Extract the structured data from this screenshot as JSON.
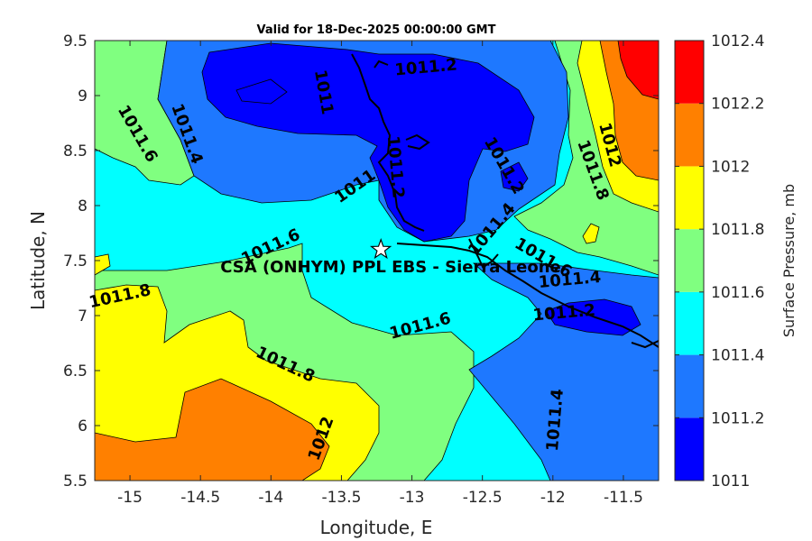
{
  "chart_data": {
    "type": "contour",
    "title": "Valid for 18-Dec-2025 00:00:00 GMT",
    "xlabel": "Longitude, E",
    "ylabel": "Latitude, N",
    "xlim": [
      -15.25,
      -11.25
    ],
    "ylim": [
      5.5,
      9.5
    ],
    "xticks": [
      -15,
      -14.5,
      -14,
      -13.5,
      -13,
      -12.5,
      -12,
      -11.5
    ],
    "xtick_labels": [
      "-15",
      "-14.5",
      "-14",
      "-13.5",
      "-13",
      "-12.5",
      "-12",
      "-11.5"
    ],
    "yticks": [
      5.5,
      6,
      6.5,
      7,
      7.5,
      8,
      8.5,
      9,
      9.5
    ],
    "ytick_labels": [
      "5.5",
      "6",
      "6.5",
      "7",
      "7.5",
      "8",
      "8.5",
      "9",
      "9.5"
    ],
    "colorbar": {
      "title": "Surface Pressure, mb",
      "levels": [
        1011,
        1011.2,
        1011.4,
        1011.6,
        1011.8,
        1012,
        1012.2,
        1012.4
      ],
      "level_labels": [
        "1011",
        "1011.2",
        "1011.4",
        "1011.6",
        "1011.8",
        "1012",
        "1012.2",
        "1012.4"
      ],
      "colors": [
        "#0000ff",
        "#1e78ff",
        "#00ffff",
        "#80ff80",
        "#ffff00",
        "#ff8000",
        "#ff0000",
        "#800000"
      ]
    },
    "station": {
      "name": "CSA (ONHYM) PPL EBS  - Sierra Leone",
      "lon": -13.22,
      "lat": 7.6
    },
    "contour_labels": [
      {
        "text": "1011.2",
        "lon": -12.9,
        "lat": 9.25,
        "angle": -5
      },
      {
        "text": "1011",
        "lon": -13.63,
        "lat": 9.03,
        "angle": 80
      },
      {
        "text": "1011.4",
        "lon": -14.6,
        "lat": 8.65,
        "angle": 70
      },
      {
        "text": "1011.6",
        "lon": -14.95,
        "lat": 8.65,
        "angle": 60
      },
      {
        "text": "1011",
        "lon": -13.4,
        "lat": 8.17,
        "angle": -35
      },
      {
        "text": "1011.2",
        "lon": -13.12,
        "lat": 8.35,
        "angle": 85
      },
      {
        "text": "1011.2",
        "lon": -12.35,
        "lat": 8.36,
        "angle": 60
      },
      {
        "text": "1012",
        "lon": -11.6,
        "lat": 8.55,
        "angle": 75
      },
      {
        "text": "1011.8",
        "lon": -11.72,
        "lat": 8.32,
        "angle": 70
      },
      {
        "text": "1011.4",
        "lon": -12.43,
        "lat": 7.78,
        "angle": -50
      },
      {
        "text": "1011.6",
        "lon": -14.0,
        "lat": 7.62,
        "angle": -25
      },
      {
        "text": "1011.6",
        "lon": -12.07,
        "lat": 7.52,
        "angle": 30
      },
      {
        "text": "1011.4",
        "lon": -11.88,
        "lat": 7.32,
        "angle": -5
      },
      {
        "text": "1011.2",
        "lon": -11.92,
        "lat": 7.02,
        "angle": -5
      },
      {
        "text": "1011.8",
        "lon": -15.07,
        "lat": 7.17,
        "angle": -12
      },
      {
        "text": "1011.6",
        "lon": -12.94,
        "lat": 6.9,
        "angle": -15
      },
      {
        "text": "1011.8",
        "lon": -13.9,
        "lat": 6.55,
        "angle": 25
      },
      {
        "text": "1011.4",
        "lon": -11.98,
        "lat": 6.05,
        "angle": -85
      },
      {
        "text": "1012",
        "lon": -13.64,
        "lat": 5.88,
        "angle": -70
      }
    ]
  }
}
